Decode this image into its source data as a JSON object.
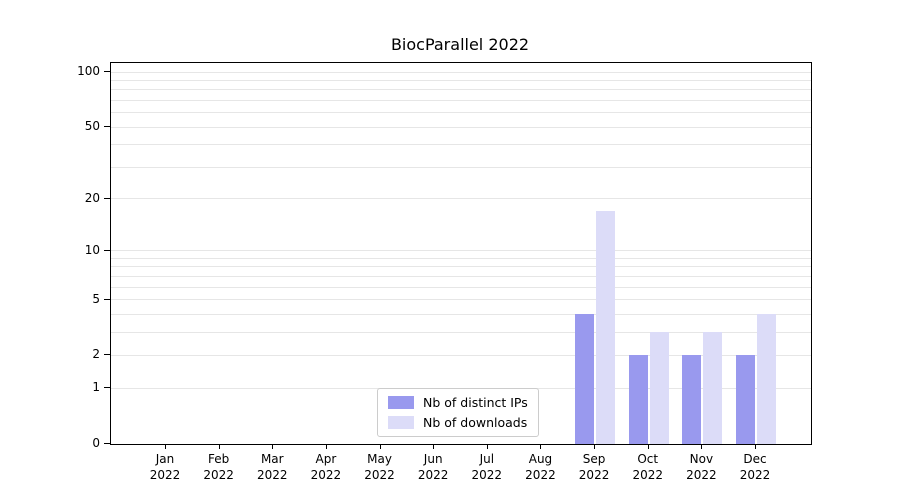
{
  "title": "BiocParallel 2022",
  "legend": {
    "items": [
      {
        "label": "Nb of distinct IPs",
        "color": "#9999ee"
      },
      {
        "label": "Nb of downloads",
        "color": "#dcdcf8"
      }
    ]
  },
  "chart_data": {
    "type": "bar",
    "title": "BiocParallel 2022",
    "categories": [
      "Jan 2022",
      "Feb 2022",
      "Mar 2022",
      "Apr 2022",
      "May 2022",
      "Jun 2022",
      "Jul 2022",
      "Aug 2022",
      "Sep 2022",
      "Oct 2022",
      "Nov 2022",
      "Dec 2022"
    ],
    "series": [
      {
        "name": "Nb of distinct IPs",
        "color": "#9999ee",
        "values": [
          0,
          0,
          0,
          0,
          0,
          0,
          0,
          0,
          4,
          2,
          2,
          2
        ]
      },
      {
        "name": "Nb of downloads",
        "color": "#dcdcf8",
        "values": [
          0,
          0,
          0,
          0,
          0,
          0,
          0,
          0,
          17,
          3,
          3,
          4
        ]
      }
    ],
    "xlabel": "",
    "ylabel": "",
    "yscale": "log1p",
    "ylim": [
      0,
      112
    ],
    "yticks": [
      0,
      1,
      2,
      5,
      10,
      20,
      50,
      100
    ],
    "gridlines": [
      1,
      2,
      3,
      4,
      5,
      6,
      7,
      8,
      9,
      10,
      20,
      30,
      40,
      50,
      60,
      70,
      80,
      90,
      100
    ],
    "grid": true,
    "legend_position": "lower center"
  }
}
